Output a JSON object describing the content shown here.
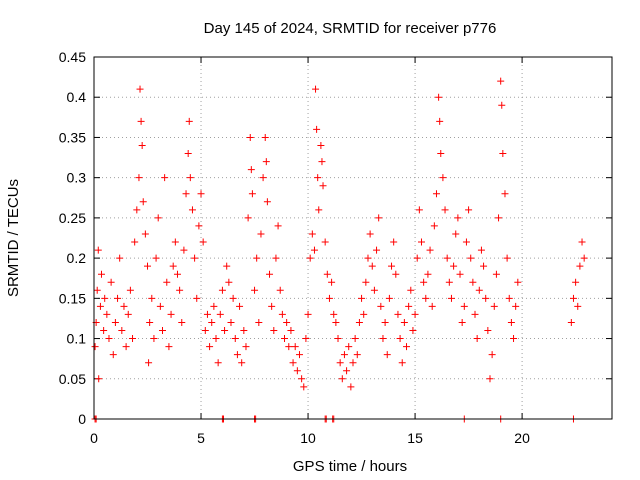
{
  "chart_data": {
    "type": "scatter",
    "title": "Day 145 of 2024, SRMTID for receiver p776",
    "xlabel": "GPS time / hours",
    "ylabel": "SRMTID / TECUs",
    "xlim": [
      0,
      24.2
    ],
    "ylim": [
      0,
      0.45
    ],
    "xticks": [
      0,
      5,
      10,
      15,
      20
    ],
    "xtick_labels": [
      "0",
      "5",
      "10",
      "15",
      "20"
    ],
    "yticks": [
      0,
      0.05,
      0.1,
      0.15,
      0.2,
      0.25,
      0.3,
      0.35,
      0.4,
      0.45
    ],
    "ytick_labels": [
      "0",
      "0.05",
      "0.1",
      "0.15",
      "0.2",
      "0.25",
      "0.3",
      "0.35",
      "0.4",
      "0.45"
    ],
    "grid": true,
    "marker": "+",
    "color": "#ff0000",
    "series": [
      {
        "name": "SRMTID",
        "points": [
          [
            0.05,
            0.09
          ],
          [
            0.1,
            0.12
          ],
          [
            0.15,
            0.16
          ],
          [
            0.2,
            0.21
          ],
          [
            0.22,
            0.05
          ],
          [
            0.3,
            0.14
          ],
          [
            0.35,
            0.18
          ],
          [
            0.45,
            0.11
          ],
          [
            0.5,
            0.15
          ],
          [
            0.6,
            0.13
          ],
          [
            0.7,
            0.1
          ],
          [
            0.8,
            0.17
          ],
          [
            0.9,
            0.08
          ],
          [
            1.0,
            0.12
          ],
          [
            1.1,
            0.15
          ],
          [
            1.2,
            0.2
          ],
          [
            1.3,
            0.11
          ],
          [
            1.4,
            0.14
          ],
          [
            1.5,
            0.09
          ],
          [
            1.6,
            0.13
          ],
          [
            1.7,
            0.16
          ],
          [
            1.8,
            0.1
          ],
          [
            1.9,
            0.22
          ],
          [
            2.0,
            0.26
          ],
          [
            2.1,
            0.3
          ],
          [
            2.15,
            0.41
          ],
          [
            2.2,
            0.37
          ],
          [
            2.25,
            0.34
          ],
          [
            2.3,
            0.27
          ],
          [
            2.4,
            0.23
          ],
          [
            2.5,
            0.19
          ],
          [
            2.55,
            0.07
          ],
          [
            2.6,
            0.12
          ],
          [
            2.7,
            0.15
          ],
          [
            2.8,
            0.1
          ],
          [
            2.9,
            0.2
          ],
          [
            3.0,
            0.25
          ],
          [
            3.1,
            0.14
          ],
          [
            3.2,
            0.11
          ],
          [
            3.3,
            0.3
          ],
          [
            3.4,
            0.17
          ],
          [
            3.5,
            0.09
          ],
          [
            3.6,
            0.13
          ],
          [
            3.7,
            0.19
          ],
          [
            3.8,
            0.22
          ],
          [
            3.9,
            0.18
          ],
          [
            4.0,
            0.16
          ],
          [
            4.1,
            0.12
          ],
          [
            4.2,
            0.21
          ],
          [
            4.3,
            0.28
          ],
          [
            4.4,
            0.33
          ],
          [
            4.45,
            0.37
          ],
          [
            4.5,
            0.3
          ],
          [
            4.6,
            0.26
          ],
          [
            4.7,
            0.2
          ],
          [
            4.8,
            0.15
          ],
          [
            4.9,
            0.24
          ],
          [
            5.0,
            0.28
          ],
          [
            5.1,
            0.22
          ],
          [
            5.2,
            0.11
          ],
          [
            5.3,
            0.13
          ],
          [
            5.4,
            0.09
          ],
          [
            5.5,
            0.12
          ],
          [
            5.6,
            0.14
          ],
          [
            5.7,
            0.1
          ],
          [
            5.8,
            0.07
          ],
          [
            5.9,
            0.13
          ],
          [
            6.0,
            0.16
          ],
          [
            6.1,
            0.11
          ],
          [
            6.2,
            0.19
          ],
          [
            6.3,
            0.17
          ],
          [
            6.4,
            0.12
          ],
          [
            6.5,
            0.15
          ],
          [
            6.6,
            0.1
          ],
          [
            6.7,
            0.08
          ],
          [
            6.8,
            0.14
          ],
          [
            6.9,
            0.07
          ],
          [
            7.0,
            0.11
          ],
          [
            7.1,
            0.09
          ],
          [
            7.2,
            0.25
          ],
          [
            7.3,
            0.35
          ],
          [
            7.35,
            0.31
          ],
          [
            7.4,
            0.28
          ],
          [
            7.5,
            0.16
          ],
          [
            7.6,
            0.2
          ],
          [
            7.7,
            0.12
          ],
          [
            7.8,
            0.23
          ],
          [
            7.9,
            0.3
          ],
          [
            8.0,
            0.35
          ],
          [
            8.05,
            0.32
          ],
          [
            8.1,
            0.27
          ],
          [
            8.2,
            0.18
          ],
          [
            8.3,
            0.14
          ],
          [
            8.4,
            0.11
          ],
          [
            8.5,
            0.2
          ],
          [
            8.6,
            0.24
          ],
          [
            8.7,
            0.16
          ],
          [
            8.8,
            0.13
          ],
          [
            8.9,
            0.1
          ],
          [
            9.0,
            0.12
          ],
          [
            9.1,
            0.09
          ],
          [
            9.2,
            0.11
          ],
          [
            9.3,
            0.07
          ],
          [
            9.4,
            0.09
          ],
          [
            9.5,
            0.06
          ],
          [
            9.6,
            0.08
          ],
          [
            9.7,
            0.05
          ],
          [
            9.8,
            0.04
          ],
          [
            9.9,
            0.1
          ],
          [
            10.0,
            0.13
          ],
          [
            10.1,
            0.2
          ],
          [
            10.2,
            0.23
          ],
          [
            10.3,
            0.21
          ],
          [
            10.35,
            0.41
          ],
          [
            10.4,
            0.36
          ],
          [
            10.45,
            0.3
          ],
          [
            10.5,
            0.26
          ],
          [
            10.6,
            0.34
          ],
          [
            10.65,
            0.32
          ],
          [
            10.7,
            0.29
          ],
          [
            10.8,
            0.22
          ],
          [
            10.9,
            0.18
          ],
          [
            11.0,
            0.15
          ],
          [
            11.1,
            0.17
          ],
          [
            11.2,
            0.13
          ],
          [
            11.3,
            0.12
          ],
          [
            11.4,
            0.1
          ],
          [
            11.5,
            0.07
          ],
          [
            11.6,
            0.05
          ],
          [
            11.7,
            0.08
          ],
          [
            11.8,
            0.06
          ],
          [
            11.9,
            0.09
          ],
          [
            12.0,
            0.04
          ],
          [
            12.1,
            0.07
          ],
          [
            12.2,
            0.1
          ],
          [
            12.3,
            0.08
          ],
          [
            12.4,
            0.12
          ],
          [
            12.5,
            0.15
          ],
          [
            12.6,
            0.13
          ],
          [
            12.7,
            0.17
          ],
          [
            12.8,
            0.2
          ],
          [
            12.9,
            0.23
          ],
          [
            13.0,
            0.19
          ],
          [
            13.1,
            0.16
          ],
          [
            13.2,
            0.21
          ],
          [
            13.3,
            0.25
          ],
          [
            13.4,
            0.14
          ],
          [
            13.5,
            0.1
          ],
          [
            13.6,
            0.12
          ],
          [
            13.7,
            0.08
          ],
          [
            13.8,
            0.15
          ],
          [
            13.9,
            0.19
          ],
          [
            14.0,
            0.22
          ],
          [
            14.1,
            0.18
          ],
          [
            14.2,
            0.13
          ],
          [
            14.3,
            0.1
          ],
          [
            14.4,
            0.07
          ],
          [
            14.5,
            0.12
          ],
          [
            14.6,
            0.09
          ],
          [
            14.7,
            0.14
          ],
          [
            14.8,
            0.16
          ],
          [
            14.9,
            0.11
          ],
          [
            15.0,
            0.13
          ],
          [
            15.1,
            0.2
          ],
          [
            15.2,
            0.26
          ],
          [
            15.3,
            0.22
          ],
          [
            15.4,
            0.17
          ],
          [
            15.5,
            0.15
          ],
          [
            15.6,
            0.18
          ],
          [
            15.7,
            0.21
          ],
          [
            15.8,
            0.14
          ],
          [
            15.9,
            0.24
          ],
          [
            16.0,
            0.28
          ],
          [
            16.1,
            0.4
          ],
          [
            16.15,
            0.37
          ],
          [
            16.2,
            0.33
          ],
          [
            16.3,
            0.3
          ],
          [
            16.4,
            0.26
          ],
          [
            16.5,
            0.2
          ],
          [
            16.6,
            0.17
          ],
          [
            16.7,
            0.15
          ],
          [
            16.8,
            0.19
          ],
          [
            16.9,
            0.23
          ],
          [
            17.0,
            0.25
          ],
          [
            17.1,
            0.18
          ],
          [
            17.2,
            0.12
          ],
          [
            17.3,
            0.14
          ],
          [
            17.4,
            0.22
          ],
          [
            17.5,
            0.26
          ],
          [
            17.6,
            0.2
          ],
          [
            17.7,
            0.17
          ],
          [
            17.8,
            0.13
          ],
          [
            17.9,
            0.1
          ],
          [
            18.0,
            0.16
          ],
          [
            18.1,
            0.21
          ],
          [
            18.2,
            0.19
          ],
          [
            18.3,
            0.15
          ],
          [
            18.4,
            0.11
          ],
          [
            18.5,
            0.05
          ],
          [
            18.6,
            0.08
          ],
          [
            18.7,
            0.14
          ],
          [
            18.8,
            0.18
          ],
          [
            18.9,
            0.25
          ],
          [
            19.0,
            0.42
          ],
          [
            19.05,
            0.39
          ],
          [
            19.1,
            0.33
          ],
          [
            19.2,
            0.28
          ],
          [
            19.3,
            0.2
          ],
          [
            19.4,
            0.15
          ],
          [
            19.5,
            0.12
          ],
          [
            19.6,
            0.1
          ],
          [
            19.7,
            0.14
          ],
          [
            19.8,
            0.17
          ],
          [
            22.3,
            0.12
          ],
          [
            22.4,
            0.15
          ],
          [
            22.5,
            0.17
          ],
          [
            22.6,
            0.14
          ],
          [
            22.7,
            0.19
          ],
          [
            22.8,
            0.22
          ],
          [
            22.9,
            0.2
          ]
        ]
      }
    ],
    "zero_points": [
      0.05,
      0.1,
      6.0,
      6.05,
      7.5,
      7.55,
      10.8,
      10.85,
      11.15,
      11.2,
      17.3,
      19.0,
      22.4
    ]
  }
}
